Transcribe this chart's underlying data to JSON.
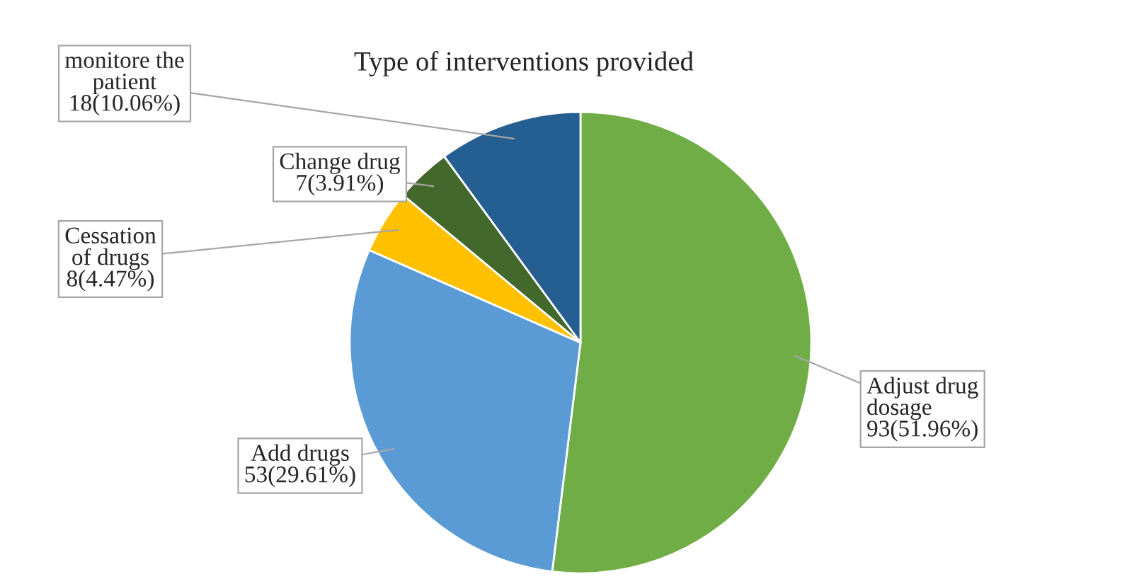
{
  "chart_data": {
    "type": "pie",
    "title": "Type of interventions provided",
    "categories": [
      "Adjust drug\ndosage",
      "Add drugs",
      "Cessation\nof drugs",
      "Change drug",
      "monitore the\npatient"
    ],
    "values": [
      93,
      53,
      8,
      7,
      18
    ],
    "value_labels": [
      "93(51.96%)",
      "53(29.61%)",
      "8(4.47%)",
      "7(3.91%)",
      "18(10.06%)"
    ],
    "colors": [
      "#70ad47",
      "#5b9bd5",
      "#ffc000",
      "#43682b",
      "#255e91"
    ],
    "legend": false
  }
}
